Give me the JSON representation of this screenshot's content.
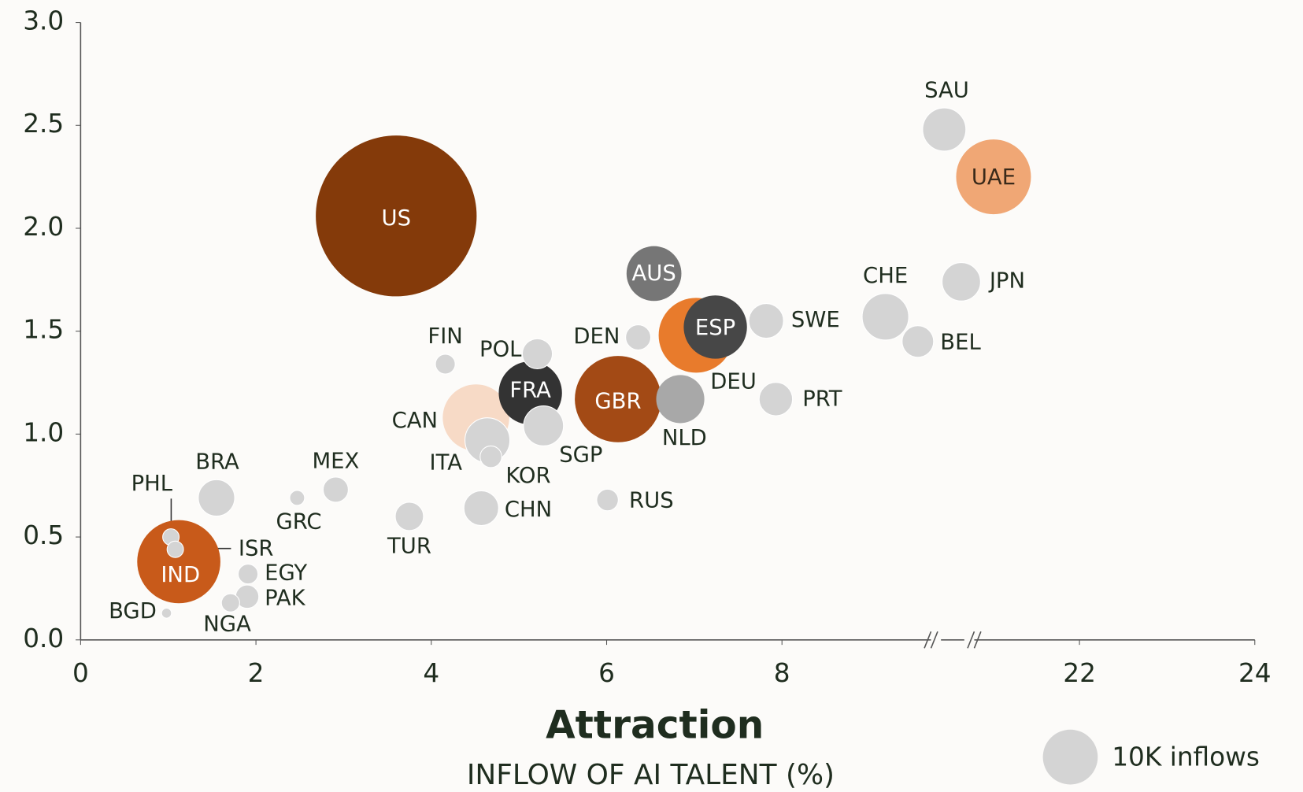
{
  "chart_data": {
    "type": "bubble",
    "x_label": "Attraction",
    "x_sublabel": "INFLOW OF AI TALENT (%)",
    "labels": [
      "US",
      "UAE",
      "SAU",
      "AUS",
      "ESP",
      "DEU",
      "SWE",
      "CHE",
      "JPN",
      "BEL",
      "DEN",
      "PRT",
      "NLD",
      "GBR",
      "FRA",
      "POL",
      "FIN",
      "CAN",
      "ITA",
      "SGP",
      "KOR",
      "CHN",
      "RUS",
      "TUR",
      "MEX",
      "GRC",
      "BRA",
      "IND",
      "PHL",
      "ISR",
      "EGY",
      "PAK",
      "NGA",
      "BGD"
    ],
    "x": [
      3.6,
      21.02,
      13.1,
      6.54,
      7.24,
      7.02,
      7.82,
      9.18,
      17.47,
      9.55,
      6.36,
      7.93,
      6.84,
      6.13,
      5.13,
      5.21,
      4.16,
      4.51,
      4.64,
      5.28,
      4.68,
      4.57,
      6.01,
      3.75,
      2.91,
      2.47,
      1.55,
      1.12,
      1.03,
      1.08,
      1.91,
      1.9,
      1.71,
      0.98
    ],
    "y": [
      2.06,
      2.25,
      2.48,
      1.78,
      1.52,
      1.48,
      1.55,
      1.57,
      1.74,
      1.45,
      1.47,
      1.17,
      1.17,
      1.17,
      1.2,
      1.39,
      1.34,
      1.08,
      0.97,
      1.04,
      0.89,
      0.64,
      0.68,
      0.6,
      0.73,
      0.69,
      0.69,
      0.38,
      0.5,
      0.44,
      0.32,
      0.21,
      0.18,
      0.13
    ],
    "sizes": [
      86,
      18.6,
      6.2,
      10,
      13.3,
      18.6,
      4,
      7.2,
      4.9,
      3.3,
      2.1,
      3.7,
      7.7,
      24.8,
      13.3,
      3,
      1.3,
      14.7,
      6.7,
      5.3,
      1.55,
      4,
      1.55,
      2.65,
      2.1,
      0.74,
      4.4,
      23,
      0.9,
      0.9,
      1.3,
      1.8,
      1.1,
      0.33
    ],
    "colors": [
      "#843a0a",
      "#f0a775",
      "#d4d4d4",
      "#767676",
      "#474747",
      "#e87b2c",
      "#d4d4d4",
      "#d4d4d4",
      "#d4d4d4",
      "#d4d4d4",
      "#d4d4d4",
      "#d4d4d4",
      "#a8a8a8",
      "#a34a15",
      "#333333",
      "#d4d4d4",
      "#d4d4d4",
      "#f6d3bd",
      "#d4d4d4",
      "#d4d4d4",
      "#d4d4d4",
      "#d4d4d4",
      "#d4d4d4",
      "#d4d4d4",
      "#d4d4d4",
      "#d4d4d4",
      "#d4d4d4",
      "#c85a1a",
      "#d4d4d4",
      "#d4d4d4",
      "#d4d4d4",
      "#d4d4d4",
      "#d4d4d4",
      "#d4d4d4"
    ],
    "xlim": [
      0,
      24
    ],
    "xbreak": [
      9.7,
      20.8
    ],
    "xticks": [
      0,
      2,
      4,
      6,
      8,
      22,
      24
    ],
    "ylim": [
      0,
      3
    ],
    "yticks": [
      {
        "value": 0,
        "label": "0.0"
      },
      0.5,
      {
        "value": 1,
        "label": "1.0"
      },
      1.5,
      {
        "value": 2,
        "label": "2.0"
      },
      2.5,
      {
        "value": 3,
        "label": "3.0"
      }
    ],
    "size_legend": {
      "value": 10,
      "label": "10K inflows"
    }
  }
}
